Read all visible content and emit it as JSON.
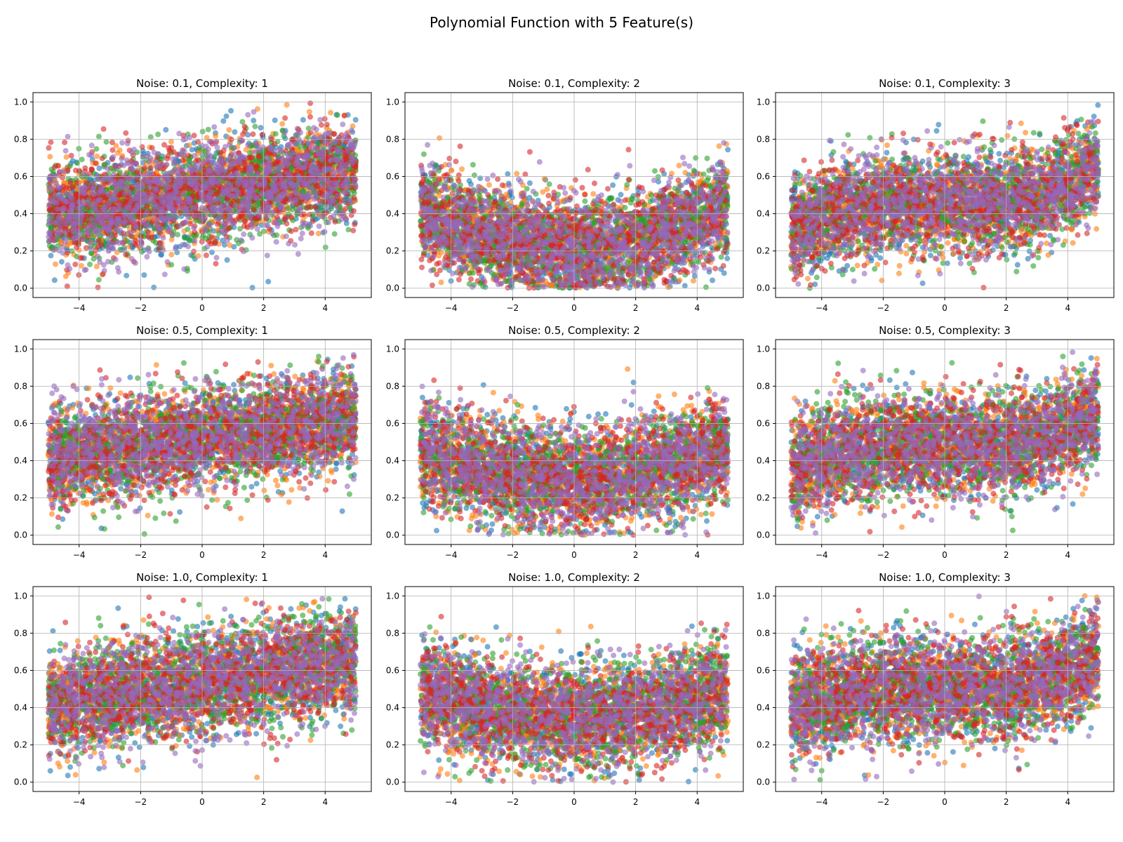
{
  "figure": {
    "suptitle": "Polynomial Function with 5 Feature(s)",
    "series_colors": [
      "#1f77b4",
      "#ff7f0e",
      "#2ca02c",
      "#d62728",
      "#9467bd"
    ],
    "series_count": 5,
    "points_per_series": 1000
  },
  "chart_data": [
    {
      "type": "scatter",
      "title": "Noise: 0.1, Complexity: 1",
      "noise": 0.1,
      "complexity": 1,
      "xlim": [
        -5.5,
        5.5
      ],
      "ylim": [
        -0.05,
        1.05
      ],
      "xticks": [
        -4,
        -2,
        0,
        2,
        4
      ],
      "xtick_labels": [
        "−4",
        "−2",
        "0",
        "2",
        "4"
      ],
      "yticks": [
        0.0,
        0.2,
        0.4,
        0.6,
        0.8,
        1.0
      ],
      "ytick_labels": [
        "0.0",
        "0.2",
        "0.4",
        "0.6",
        "0.8",
        "1.0"
      ],
      "grid": true,
      "x_range": [
        -5,
        5
      ],
      "trend": "increasing",
      "y_at_x_min": 0.4,
      "y_at_x_max": 0.63
    },
    {
      "type": "scatter",
      "title": "Noise: 0.1, Complexity: 2",
      "noise": 0.1,
      "complexity": 2,
      "xlim": [
        -5.5,
        5.5
      ],
      "ylim": [
        -0.05,
        1.05
      ],
      "xticks": [
        -4,
        -2,
        0,
        2,
        4
      ],
      "xtick_labels": [
        "−4",
        "−2",
        "0",
        "2",
        "4"
      ],
      "yticks": [
        0.0,
        0.2,
        0.4,
        0.6,
        0.8,
        1.0
      ],
      "ytick_labels": [
        "0.0",
        "0.2",
        "0.4",
        "0.6",
        "0.8",
        "1.0"
      ],
      "grid": true,
      "x_range": [
        -5,
        5
      ],
      "trend": "u-shaped",
      "y_at_x_min": 0.42,
      "y_at_x_center": 0.22,
      "y_at_x_max": 0.45
    },
    {
      "type": "scatter",
      "title": "Noise: 0.1, Complexity: 3",
      "noise": 0.1,
      "complexity": 3,
      "xlim": [
        -5.5,
        5.5
      ],
      "ylim": [
        -0.05,
        1.05
      ],
      "xticks": [
        -4,
        -2,
        0,
        2,
        4
      ],
      "xtick_labels": [
        "−4",
        "−2",
        "0",
        "2",
        "4"
      ],
      "yticks": [
        0.0,
        0.2,
        0.4,
        0.6,
        0.8,
        1.0
      ],
      "ytick_labels": [
        "0.0",
        "0.2",
        "0.4",
        "0.6",
        "0.8",
        "1.0"
      ],
      "grid": true,
      "x_range": [
        -5,
        5
      ],
      "trend": "cubic",
      "y_at_x_min": 0.3,
      "y_at_x_center": 0.45,
      "y_at_x_max": 0.65
    },
    {
      "type": "scatter",
      "title": "Noise: 0.5, Complexity: 1",
      "noise": 0.5,
      "complexity": 1,
      "xlim": [
        -5.5,
        5.5
      ],
      "ylim": [
        -0.05,
        1.05
      ],
      "xticks": [
        -4,
        -2,
        0,
        2,
        4
      ],
      "xtick_labels": [
        "−4",
        "−2",
        "0",
        "2",
        "4"
      ],
      "yticks": [
        0.0,
        0.2,
        0.4,
        0.6,
        0.8,
        1.0
      ],
      "ytick_labels": [
        "0.0",
        "0.2",
        "0.4",
        "0.6",
        "0.8",
        "1.0"
      ],
      "grid": true,
      "x_range": [
        -5,
        5
      ],
      "trend": "increasing",
      "y_at_x_min": 0.42,
      "y_at_x_max": 0.63
    },
    {
      "type": "scatter",
      "title": "Noise: 0.5, Complexity: 2",
      "noise": 0.5,
      "complexity": 2,
      "xlim": [
        -5.5,
        5.5
      ],
      "ylim": [
        -0.05,
        1.05
      ],
      "xticks": [
        -4,
        -2,
        0,
        2,
        4
      ],
      "xtick_labels": [
        "−4",
        "−2",
        "0",
        "2",
        "4"
      ],
      "yticks": [
        0.0,
        0.2,
        0.4,
        0.6,
        0.8,
        1.0
      ],
      "ytick_labels": [
        "0.0",
        "0.2",
        "0.4",
        "0.6",
        "0.8",
        "1.0"
      ],
      "grid": true,
      "x_range": [
        -5,
        5
      ],
      "trend": "u-shaped",
      "y_at_x_min": 0.45,
      "y_at_x_center": 0.3,
      "y_at_x_max": 0.48
    },
    {
      "type": "scatter",
      "title": "Noise: 0.5, Complexity: 3",
      "noise": 0.5,
      "complexity": 3,
      "xlim": [
        -5.5,
        5.5
      ],
      "ylim": [
        -0.05,
        1.05
      ],
      "xticks": [
        -4,
        -2,
        0,
        2,
        4
      ],
      "xtick_labels": [
        "−4",
        "−2",
        "0",
        "2",
        "4"
      ],
      "yticks": [
        0.0,
        0.2,
        0.4,
        0.6,
        0.8,
        1.0
      ],
      "ytick_labels": [
        "0.0",
        "0.2",
        "0.4",
        "0.6",
        "0.8",
        "1.0"
      ],
      "grid": true,
      "x_range": [
        -5,
        5
      ],
      "trend": "cubic",
      "y_at_x_min": 0.35,
      "y_at_x_center": 0.48,
      "y_at_x_max": 0.65
    },
    {
      "type": "scatter",
      "title": "Noise: 1.0, Complexity: 1",
      "noise": 1.0,
      "complexity": 1,
      "xlim": [
        -5.5,
        5.5
      ],
      "ylim": [
        -0.05,
        1.05
      ],
      "xticks": [
        -4,
        -2,
        0,
        2,
        4
      ],
      "xtick_labels": [
        "−4",
        "−2",
        "0",
        "2",
        "4"
      ],
      "yticks": [
        0.0,
        0.2,
        0.4,
        0.6,
        0.8,
        1.0
      ],
      "ytick_labels": [
        "0.0",
        "0.2",
        "0.4",
        "0.6",
        "0.8",
        "1.0"
      ],
      "grid": true,
      "x_range": [
        -5,
        5
      ],
      "trend": "increasing",
      "y_at_x_min": 0.42,
      "y_at_x_max": 0.65
    },
    {
      "type": "scatter",
      "title": "Noise: 1.0, Complexity: 2",
      "noise": 1.0,
      "complexity": 2,
      "xlim": [
        -5.5,
        5.5
      ],
      "ylim": [
        -0.05,
        1.05
      ],
      "xticks": [
        -4,
        -2,
        0,
        2,
        4
      ],
      "xtick_labels": [
        "−4",
        "−2",
        "0",
        "2",
        "4"
      ],
      "yticks": [
        0.0,
        0.2,
        0.4,
        0.6,
        0.8,
        1.0
      ],
      "ytick_labels": [
        "0.0",
        "0.2",
        "0.4",
        "0.6",
        "0.8",
        "1.0"
      ],
      "grid": true,
      "x_range": [
        -5,
        5
      ],
      "trend": "u-shaped",
      "y_at_x_min": 0.48,
      "y_at_x_center": 0.35,
      "y_at_x_max": 0.5
    },
    {
      "type": "scatter",
      "title": "Noise: 1.0, Complexity: 3",
      "noise": 1.0,
      "complexity": 3,
      "xlim": [
        -5.5,
        5.5
      ],
      "ylim": [
        -0.05,
        1.05
      ],
      "xticks": [
        -4,
        -2,
        0,
        2,
        4
      ],
      "xtick_labels": [
        "−4",
        "−2",
        "0",
        "2",
        "4"
      ],
      "yticks": [
        0.0,
        0.2,
        0.4,
        0.6,
        0.8,
        1.0
      ],
      "ytick_labels": [
        "0.0",
        "0.2",
        "0.4",
        "0.6",
        "0.8",
        "1.0"
      ],
      "grid": true,
      "x_range": [
        -5,
        5
      ],
      "trend": "cubic",
      "y_at_x_min": 0.4,
      "y_at_x_center": 0.5,
      "y_at_x_max": 0.68
    }
  ]
}
